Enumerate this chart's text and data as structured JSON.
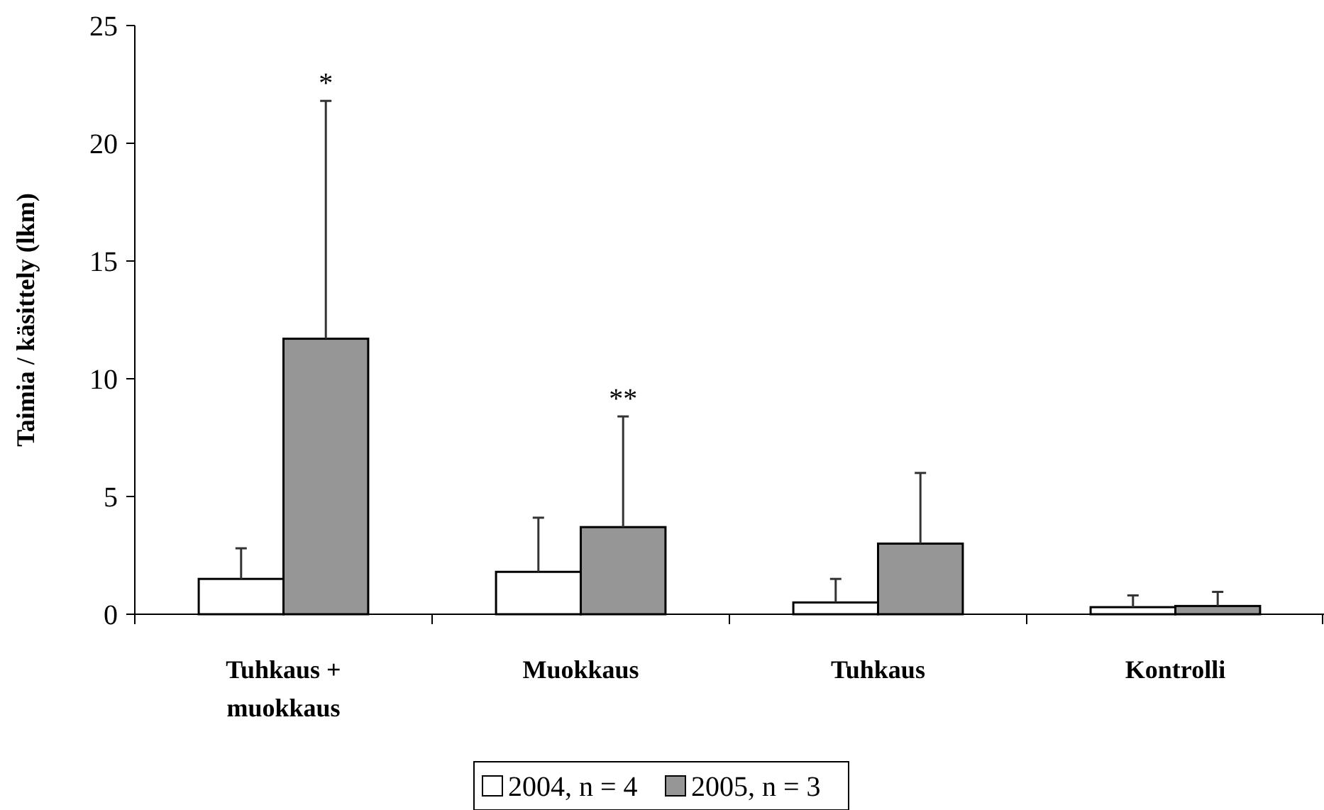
{
  "chart_data": {
    "type": "bar",
    "ylabel": "Taimia / käsittely (lkm)",
    "categories": [
      "Tuhkaus + muokkaus",
      "Muokkaus",
      "Tuhkaus",
      "Kontrolli"
    ],
    "series": [
      {
        "name": "2004, n = 4",
        "color": "#ffffff",
        "values": [
          1.5,
          1.8,
          0.5,
          0.3
        ],
        "errors": [
          [
            1.5,
            2.8
          ],
          [
            1.8,
            4.1
          ],
          [
            0.5,
            1.5
          ],
          [
            0.3,
            0.8
          ]
        ]
      },
      {
        "name": "2005, n = 3",
        "color": "#969696",
        "values": [
          11.7,
          3.7,
          3.0,
          0.35
        ],
        "errors": [
          [
            11.7,
            21.8
          ],
          [
            3.7,
            8.4
          ],
          [
            3.0,
            6.0
          ],
          [
            0.35,
            0.95
          ]
        ]
      }
    ],
    "ylim": [
      0,
      25
    ],
    "yticks": [
      0,
      5,
      10,
      15,
      20,
      25
    ],
    "grid": false,
    "legend": "bottom",
    "annotations": [
      "*",
      "**"
    ]
  }
}
